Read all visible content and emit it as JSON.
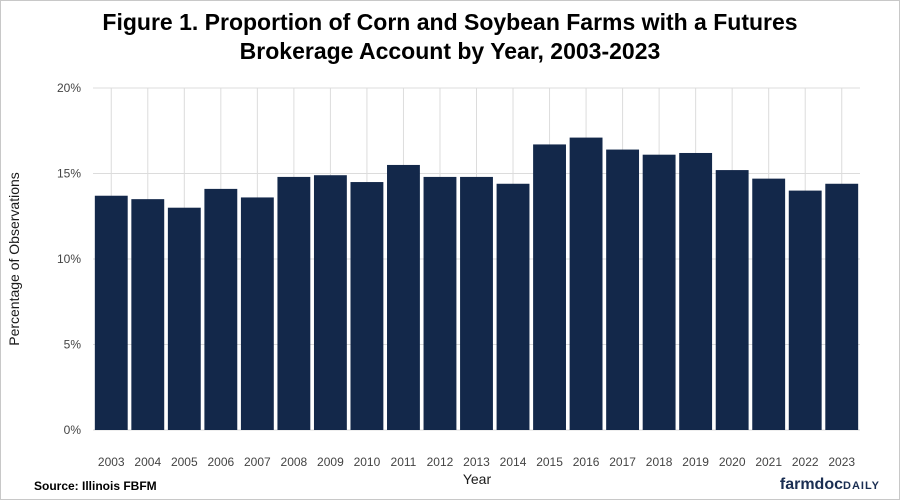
{
  "chart_data": {
    "type": "bar",
    "title_line1": "Figure 1. Proportion of Corn and Soybean Farms with a Futures",
    "title_line2": "Brokerage Account by Year, 2003-2023",
    "xlabel": "Year",
    "ylabel": "Percentage of Observations",
    "categories": [
      "2003",
      "2004",
      "2005",
      "2006",
      "2007",
      "2008",
      "2009",
      "2010",
      "2011",
      "2012",
      "2013",
      "2014",
      "2015",
      "2016",
      "2017",
      "2018",
      "2019",
      "2020",
      "2021",
      "2022",
      "2023"
    ],
    "values": [
      13.7,
      13.5,
      13.0,
      14.1,
      13.6,
      14.8,
      14.9,
      14.5,
      15.5,
      14.8,
      14.8,
      14.4,
      16.7,
      17.1,
      16.4,
      16.1,
      16.2,
      15.2,
      14.7,
      14.0,
      14.4
    ],
    "yticks": [
      0,
      5,
      10,
      15,
      20
    ],
    "ytick_labels": [
      "0%",
      "5%",
      "10%",
      "15%",
      "20%"
    ],
    "ylim": [
      0,
      20
    ],
    "bar_color": "#13284a",
    "grid_color": "#dcdcdc",
    "grid": true
  },
  "source": "Source: Illinois FBFM",
  "brand": {
    "part1": "farmdoc",
    "part2": "DAILY"
  }
}
